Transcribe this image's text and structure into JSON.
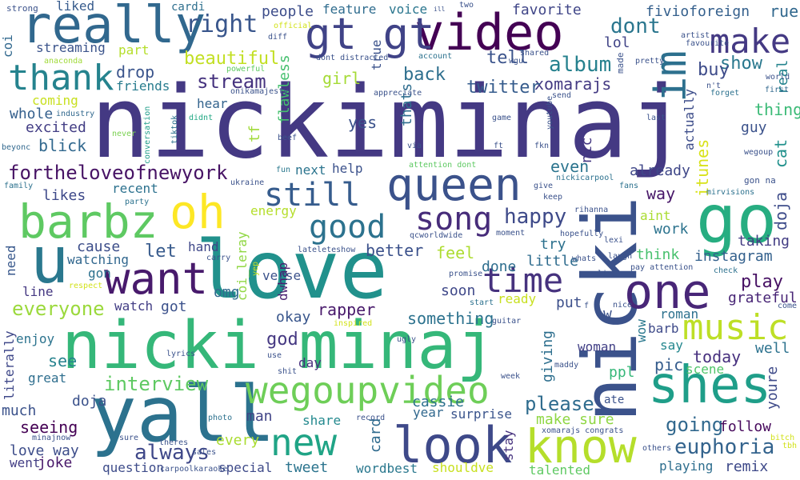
{
  "words": [
    {
      "text": "nickiminaj",
      "color": "#443983"
    },
    {
      "text": "love",
      "color": "#21918c"
    },
    {
      "text": "nicki minaj",
      "color": "#35b779"
    },
    {
      "text": "nicki",
      "color": "#3b528b"
    },
    {
      "text": "yall",
      "color": "#2c728e"
    },
    {
      "text": "go",
      "color": "#27ad81"
    },
    {
      "text": "really",
      "color": "#31688e"
    },
    {
      "text": "video",
      "color": "#440154"
    },
    {
      "text": "queen",
      "color": "#3b528b"
    },
    {
      "text": "gt gt",
      "color": "#404387"
    },
    {
      "text": "u",
      "color": "#2a788e"
    },
    {
      "text": "want",
      "color": "#481a6c"
    },
    {
      "text": "barbz",
      "color": "#5ec962"
    },
    {
      "text": "oh",
      "color": "#fde725"
    },
    {
      "text": "one",
      "color": "#482677"
    },
    {
      "text": "shes",
      "color": "#1f9e89"
    },
    {
      "text": "look",
      "color": "#3e4989"
    },
    {
      "text": "know",
      "color": "#b5de2b"
    },
    {
      "text": "wegoupvideo",
      "color": "#6ece58"
    },
    {
      "text": "new",
      "color": "#20a486"
    },
    {
      "text": "im",
      "color": "#2d708e"
    },
    {
      "text": "thank",
      "color": "#25838e"
    },
    {
      "text": "make",
      "color": "#443983"
    },
    {
      "text": "music",
      "color": "#bddf26"
    },
    {
      "text": "song",
      "color": "#472c7a"
    },
    {
      "text": "good",
      "color": "#2c728e"
    },
    {
      "text": "still",
      "color": "#365c8d"
    },
    {
      "text": "time",
      "color": "#46327e"
    },
    {
      "text": "fortheloveofnewyork",
      "color": "#471365"
    },
    {
      "text": "euphoria",
      "color": "#33638d"
    },
    {
      "text": "right",
      "color": "#39568c"
    },
    {
      "text": "stream",
      "color": "#46337f"
    },
    {
      "text": "always",
      "color": "#3f4889"
    },
    {
      "text": "everyone",
      "color": "#9bd93c"
    },
    {
      "text": "happy",
      "color": "#3e4a89"
    },
    {
      "text": "going",
      "color": "#31688e"
    },
    {
      "text": "interview",
      "color": "#5ec962"
    },
    {
      "text": "album",
      "color": "#26818e"
    },
    {
      "text": "dont",
      "color": "#2a768e"
    },
    {
      "text": "beautiful",
      "color": "#c2df23"
    },
    {
      "text": "tell",
      "color": "#3a538b"
    },
    {
      "text": "play",
      "color": "#471164"
    },
    {
      "text": "please",
      "color": "#2f6c8e"
    },
    {
      "text": "show",
      "color": "#2a788e"
    },
    {
      "text": "buy",
      "color": "#3e4c8a"
    },
    {
      "text": "xomarajs",
      "color": "#443a83"
    },
    {
      "text": "twitter",
      "color": "#365c8d"
    },
    {
      "text": "back",
      "color": "#2e6f8e"
    },
    {
      "text": "drop",
      "color": "#3a548c"
    },
    {
      "text": "girl",
      "color": "#a5db36"
    },
    {
      "text": "feel",
      "color": "#addc30"
    },
    {
      "text": "better",
      "color": "#3b518b"
    },
    {
      "text": "let",
      "color": "#375a8c"
    },
    {
      "text": "cause",
      "color": "#3d4e8a"
    },
    {
      "text": "watching",
      "color": "#31678e"
    },
    {
      "text": "omg",
      "color": "#306a8e"
    },
    {
      "text": "rapper",
      "color": "#48196b"
    },
    {
      "text": "okay",
      "color": "#39568c"
    },
    {
      "text": "something",
      "color": "#2c728e"
    },
    {
      "text": "god",
      "color": "#453882"
    },
    {
      "text": "see",
      "color": "#26828e"
    },
    {
      "text": "seeing",
      "color": "#440154"
    },
    {
      "text": "doja",
      "color": "#3b528b"
    },
    {
      "text": "love way",
      "color": "#3d4d8a"
    },
    {
      "text": "joke",
      "color": "#48186a"
    },
    {
      "text": "question",
      "color": "#3e4c8a"
    },
    {
      "text": "tweet",
      "color": "#2b748e"
    },
    {
      "text": "special",
      "color": "#3e4a89"
    },
    {
      "text": "every",
      "color": "#aadc32"
    },
    {
      "text": "man",
      "color": "#414487"
    },
    {
      "text": "share",
      "color": "#23898e"
    },
    {
      "text": "cassie",
      "color": "#2c718e"
    },
    {
      "text": "surprise",
      "color": "#3a548c"
    },
    {
      "text": "year",
      "color": "#31688e"
    },
    {
      "text": "card",
      "color": "#2f6b8e"
    },
    {
      "text": "make sure",
      "color": "#8fd744"
    },
    {
      "text": "stay",
      "color": "#46327e"
    },
    {
      "text": "talented",
      "color": "#5ec962"
    },
    {
      "text": "playing",
      "color": "#2e6e8e"
    },
    {
      "text": "remix",
      "color": "#3e4989"
    },
    {
      "text": "follow",
      "color": "#46085c"
    },
    {
      "text": "today",
      "color": "#462f7e"
    },
    {
      "text": "pic",
      "color": "#365d8d"
    },
    {
      "text": "scene",
      "color": "#50c46a"
    },
    {
      "text": "ppl",
      "color": "#35b779"
    },
    {
      "text": "say",
      "color": "#24878e"
    },
    {
      "text": "well",
      "color": "#2c728e"
    },
    {
      "text": "grateful",
      "color": "#482576"
    },
    {
      "text": "roman",
      "color": "#2c718e"
    },
    {
      "text": "taking",
      "color": "#433d84"
    },
    {
      "text": "instagram",
      "color": "#34618d"
    },
    {
      "text": "think",
      "color": "#48c16e"
    },
    {
      "text": "work",
      "color": "#2c738e"
    },
    {
      "text": "aint",
      "color": "#aadc32"
    },
    {
      "text": "way",
      "color": "#481769"
    },
    {
      "text": "already",
      "color": "#3f4788"
    },
    {
      "text": "even",
      "color": "#2b748e"
    },
    {
      "text": "done",
      "color": "#2e6e8e"
    },
    {
      "text": "try",
      "color": "#2d718e"
    },
    {
      "text": "little",
      "color": "#2f6c8e"
    },
    {
      "text": "put",
      "color": "#3c4f8a"
    },
    {
      "text": "ready",
      "color": "#c8e020"
    },
    {
      "text": "soon",
      "color": "#3f4889"
    },
    {
      "text": "giving",
      "color": "#2e6f8e"
    },
    {
      "text": "woman",
      "color": "#424086"
    },
    {
      "text": "barb",
      "color": "#3e4a89"
    },
    {
      "text": "wow",
      "color": "#2a788e"
    },
    {
      "text": "verse",
      "color": "#3b528b"
    },
    {
      "text": "energy",
      "color": "#b5de2b"
    },
    {
      "text": "people",
      "color": "#3d4d8a"
    },
    {
      "text": "feature",
      "color": "#2f6c8e"
    },
    {
      "text": "voice",
      "color": "#2a768e"
    },
    {
      "text": "favorite",
      "color": "#404688"
    },
    {
      "text": "fivioforeign",
      "color": "#35608d"
    },
    {
      "text": "rue",
      "color": "#31688e"
    },
    {
      "text": "lol",
      "color": "#414487"
    },
    {
      "text": "real",
      "color": "#25848e"
    },
    {
      "text": "thing",
      "color": "#3aba76"
    },
    {
      "text": "guy",
      "color": "#3b528b"
    },
    {
      "text": "cat",
      "color": "#21918c"
    },
    {
      "text": "doja",
      "color": "#3e4c8a"
    },
    {
      "text": "itunes",
      "color": "#d8e219"
    },
    {
      "text": "actually",
      "color": "#3d4d8a"
    },
    {
      "text": "nic",
      "color": "#453882"
    },
    {
      "text": "help",
      "color": "#3b518b"
    },
    {
      "text": "next",
      "color": "#2b748e"
    },
    {
      "text": "likes",
      "color": "#3e4989"
    },
    {
      "text": "recent",
      "color": "#2c718e"
    },
    {
      "text": "hand",
      "color": "#3f4889"
    },
    {
      "text": "coi_leray",
      "color": "#90d743"
    },
    {
      "text": "dwhap",
      "color": "#481f70"
    },
    {
      "text": "flawless",
      "color": "#46c06f"
    },
    {
      "text": "thats",
      "color": "#2e6d8e"
    },
    {
      "text": "yes",
      "color": "#3b528b"
    },
    {
      "text": "true",
      "color": "#3b528b"
    },
    {
      "text": "tf",
      "color": "#a0da39"
    },
    {
      "text": "hear",
      "color": "#33638d"
    },
    {
      "text": "excited",
      "color": "#433e85"
    },
    {
      "text": "blick",
      "color": "#31688e"
    },
    {
      "text": "whole",
      "color": "#35608d"
    },
    {
      "text": "coming",
      "color": "#c8e020"
    },
    {
      "text": "streaming",
      "color": "#3a538b"
    },
    {
      "text": "friends",
      "color": "#287c8e"
    },
    {
      "text": "liked",
      "color": "#375b8d"
    },
    {
      "text": "part",
      "color": "#b5de2b"
    },
    {
      "text": "cardi",
      "color": "#2e6f8e"
    },
    {
      "text": "coi",
      "color": "#31688e"
    },
    {
      "text": "need",
      "color": "#38588c"
    },
    {
      "text": "line",
      "color": "#453882"
    },
    {
      "text": "literally",
      "color": "#3f4889"
    },
    {
      "text": "enjoy",
      "color": "#2c738e"
    },
    {
      "text": "great",
      "color": "#2e6e8e"
    },
    {
      "text": "much",
      "color": "#3b528b"
    },
    {
      "text": "went",
      "color": "#433e85"
    },
    {
      "text": "watch",
      "color": "#433e85"
    },
    {
      "text": "got",
      "color": "#3b518b"
    },
    {
      "text": "gon",
      "color": "#2c718e"
    },
    {
      "text": "day",
      "color": "#472f7d"
    },
    {
      "text": "youre",
      "color": "#3e4a89"
    },
    {
      "text": "wordbest",
      "color": "#2a788e"
    },
    {
      "text": "shouldve",
      "color": "#c8e020"
    },
    {
      "text": "w",
      "color": "#3b528b"
    },
    {
      "text": "strong",
      "color": "#3b528b"
    },
    {
      "text": "official",
      "color": "#d2e21b"
    },
    {
      "text": "diff",
      "color": "#3b528b"
    },
    {
      "text": "powerful",
      "color": "#5ec962"
    },
    {
      "text": "onikamajesty",
      "color": "#3b528b"
    },
    {
      "text": "industry",
      "color": "#31688e"
    },
    {
      "text": "anaconda",
      "color": "#a0da39"
    },
    {
      "text": "never",
      "color": "#7ad151"
    },
    {
      "text": "conversation",
      "color": "#1f9e89"
    },
    {
      "text": "tiktok",
      "color": "#2c718e"
    },
    {
      "text": "didnt",
      "color": "#22a884"
    },
    {
      "text": "beyonc",
      "color": "#31688e"
    },
    {
      "text": "beef",
      "color": "#3b528b"
    },
    {
      "text": "fun",
      "color": "#2a788e"
    },
    {
      "text": "ukraine",
      "color": "#3b528b"
    },
    {
      "text": "family",
      "color": "#2c718e"
    },
    {
      "text": "party",
      "color": "#2c728e"
    },
    {
      "text": "respect",
      "color": "#d2e21b"
    },
    {
      "text": "carry",
      "color": "#3b528b"
    },
    {
      "text": "lateleteshow",
      "color": "#3b528b"
    },
    {
      "text": "qcworldwide",
      "color": "#3b528b"
    },
    {
      "text": "yep",
      "color": "#c8e020"
    },
    {
      "text": "attention dont",
      "color": "#5ec962"
    },
    {
      "text": "via",
      "color": "#3b528b"
    },
    {
      "text": "ft",
      "color": "#3b528b"
    },
    {
      "text": "fkn",
      "color": "#3b528b"
    },
    {
      "text": "game",
      "color": "#3b528b"
    },
    {
      "text": "appreciate",
      "color": "#3b528b"
    },
    {
      "text": "send",
      "color": "#3b528b"
    },
    {
      "text": "youtube",
      "color": "#3b528b"
    },
    {
      "text": "dont distracted",
      "color": "#3b528b"
    },
    {
      "text": "account",
      "color": "#2c728e"
    },
    {
      "text": "wgu",
      "color": "#3b528b"
    },
    {
      "text": "shared",
      "color": "#3b528b"
    },
    {
      "text": "two",
      "color": "#3b528b"
    },
    {
      "text": "ill",
      "color": "#3b528b"
    },
    {
      "text": "made",
      "color": "#3b528b"
    },
    {
      "text": "pretty",
      "color": "#3b528b"
    },
    {
      "text": "artist",
      "color": "#3b528b"
    },
    {
      "text": "favourite",
      "color": "#3b528b"
    },
    {
      "text": "n't",
      "color": "#3b528b"
    },
    {
      "text": "forget",
      "color": "#2c718e"
    },
    {
      "text": "world",
      "color": "#3b528b"
    },
    {
      "text": "first",
      "color": "#31688e"
    },
    {
      "text": "last",
      "color": "#3b528b"
    },
    {
      "text": "wegoup",
      "color": "#3b528b"
    },
    {
      "text": "gon na",
      "color": "#3b528b"
    },
    {
      "text": "mirvisions",
      "color": "#2c718e"
    },
    {
      "text": "fans",
      "color": "#2c718e"
    },
    {
      "text": "nickicarpool",
      "color": "#2c718e"
    },
    {
      "text": "give",
      "color": "#3b528b"
    },
    {
      "text": "keep",
      "color": "#3b528b"
    },
    {
      "text": "rihanna",
      "color": "#3b528b"
    },
    {
      "text": "moment",
      "color": "#3b528b"
    },
    {
      "text": "hopefully",
      "color": "#3b528b"
    },
    {
      "text": "lexi",
      "color": "#3b528b"
    },
    {
      "text": "laugh",
      "color": "#3b528b"
    },
    {
      "text": "whats",
      "color": "#3b528b"
    },
    {
      "text": "live",
      "color": "#3b528b"
    },
    {
      "text": "pay attention",
      "color": "#3b528b"
    },
    {
      "text": "check",
      "color": "#2c718e"
    },
    {
      "text": "promise",
      "color": "#3b528b"
    },
    {
      "text": "start",
      "color": "#2c718e"
    },
    {
      "text": "nice",
      "color": "#3b528b"
    },
    {
      "text": "f",
      "color": "#3b528b"
    },
    {
      "text": "guitar",
      "color": "#3b528b"
    },
    {
      "text": "come",
      "color": "#3b528b"
    },
    {
      "text": "inspired",
      "color": "#d2e21b"
    },
    {
      "text": "use",
      "color": "#3b528b"
    },
    {
      "text": "shit",
      "color": "#3b528b"
    },
    {
      "text": "ugly",
      "color": "#3b528b"
    },
    {
      "text": "lyrics",
      "color": "#3b528b"
    },
    {
      "text": "maddy",
      "color": "#3b528b"
    },
    {
      "text": "week",
      "color": "#3b528b"
    },
    {
      "text": "photo",
      "color": "#2c718e"
    },
    {
      "text": "record",
      "color": "#3b528b"
    },
    {
      "text": "theres",
      "color": "#3b528b"
    },
    {
      "text": "sure",
      "color": "#3b528b"
    },
    {
      "text": "minajnow",
      "color": "#3b528b"
    },
    {
      "text": "sales",
      "color": "#3b528b"
    },
    {
      "text": "carpoolkaraoke",
      "color": "#3b528b"
    },
    {
      "text": "xomarajs congrats",
      "color": "#3b528b"
    },
    {
      "text": "others",
      "color": "#3b528b"
    },
    {
      "text": "bitch",
      "color": "#d2e21b"
    },
    {
      "text": "tbh",
      "color": "#d2e21b"
    },
    {
      "text": "ate",
      "color": "#3b528b"
    }
  ]
}
